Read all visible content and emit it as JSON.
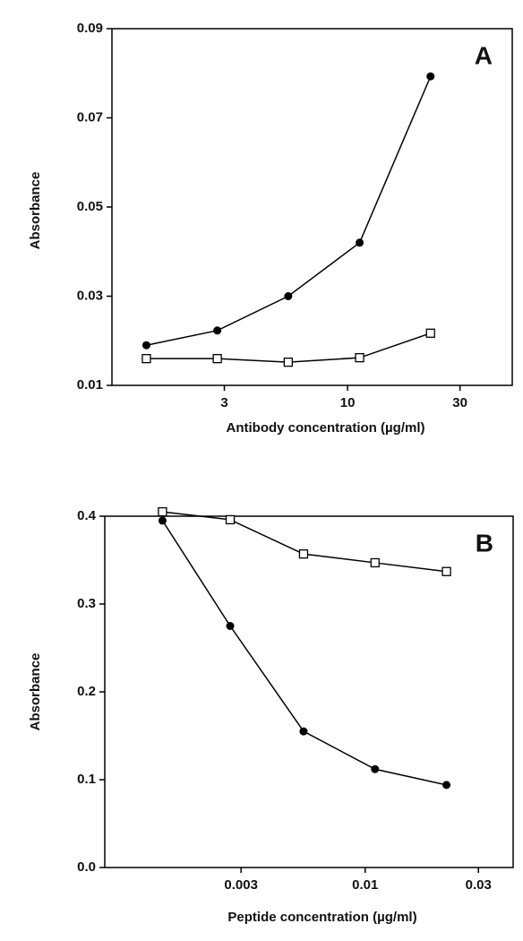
{
  "chart_data": [
    {
      "type": "line",
      "annotation": "A",
      "x_label": "Antibody concentration  (µg/ml)",
      "y_label": "Absorbance",
      "x": [
        1.4,
        2.8,
        5.6,
        11.25,
        22.5
      ],
      "series": [
        {
          "color": "#000000",
          "marker": "filled-circle",
          "values": [
            0.019,
            0.0223,
            0.03,
            0.042,
            0.0793
          ]
        },
        {
          "color": "#000000",
          "marker": "open-square",
          "values": [
            0.016,
            0.016,
            0.0152,
            0.0162,
            0.0217
          ]
        }
      ],
      "xscale": "log",
      "xlim": [
        1,
        50
      ],
      "xticks": [
        3,
        10,
        30
      ],
      "ylim": [
        0.01,
        0.09
      ],
      "yticks": [
        0.01,
        0.03,
        0.05,
        0.07,
        0.09
      ],
      "grid": false
    },
    {
      "type": "line",
      "annotation": "B",
      "x_label": "Peptide concentration   (µg/ml)",
      "y_label": "Absorbance",
      "x": [
        0.0014,
        0.0027,
        0.0055,
        0.011,
        0.022
      ],
      "series": [
        {
          "color": "#000000",
          "marker": "open-square",
          "values": [
            0.405,
            0.396,
            0.357,
            0.347,
            0.337
          ]
        },
        {
          "color": "#000000",
          "marker": "filled-circle",
          "values": [
            0.395,
            0.275,
            0.155,
            0.112,
            0.094
          ]
        }
      ],
      "xscale": "log",
      "xlim": [
        0.0008,
        0.042
      ],
      "xticks": [
        0.003,
        0.01,
        0.03
      ],
      "ylim": [
        0,
        0.4
      ],
      "yticks": [
        {
          "value": 0,
          "label": "0.0"
        },
        0.1,
        0.2,
        0.3,
        0.4
      ],
      "grid": false
    }
  ]
}
